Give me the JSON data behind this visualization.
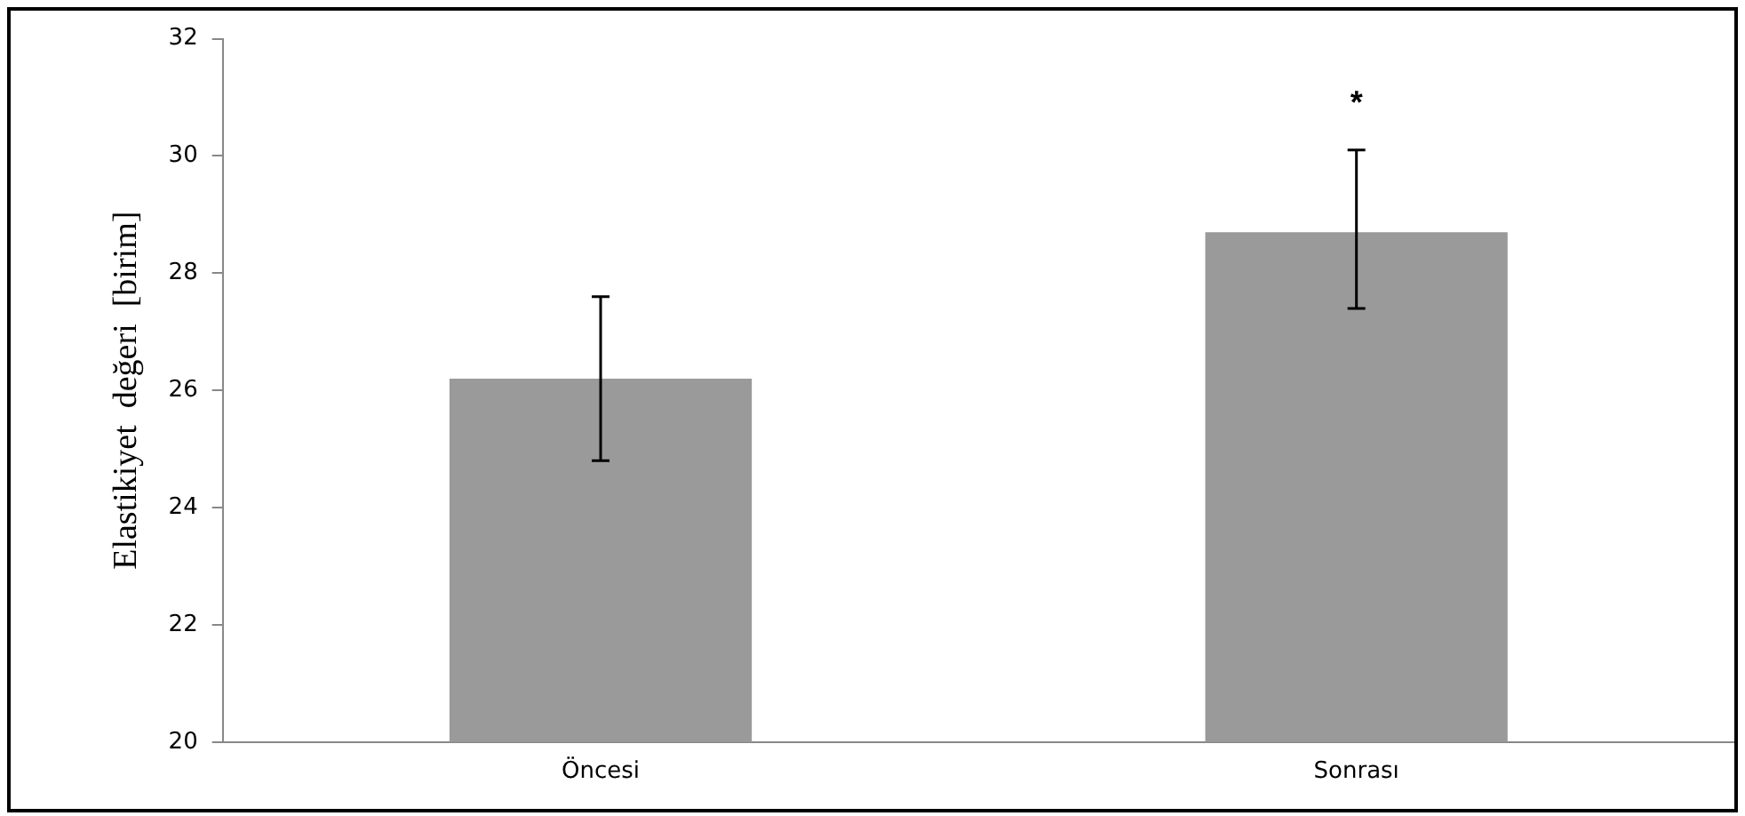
{
  "chart_data": {
    "type": "bar",
    "ylabel": "Elastikiyet  değeri  [birim]",
    "categories": [
      "Öncesi",
      "Sonrası"
    ],
    "values": [
      26.2,
      28.7
    ],
    "color": "#9a9a9a",
    "errors": [
      [
        24.8,
        27.6
      ],
      [
        27.4,
        30.1
      ]
    ],
    "ylim": [
      20,
      32
    ],
    "yticks": [
      20,
      22,
      24,
      26,
      28,
      30,
      32
    ],
    "grid": false,
    "annotations": [
      "*"
    ]
  }
}
